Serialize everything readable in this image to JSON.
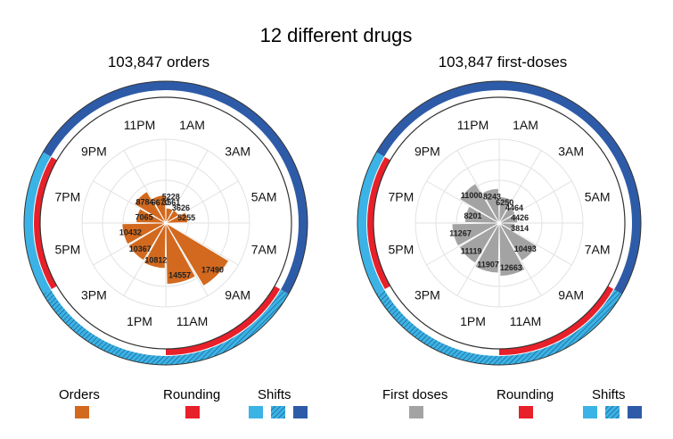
{
  "title": "12 different drugs",
  "colors": {
    "orders": "#d2691e",
    "first_doses": "#a3a3a3",
    "rounding": "#e8202a",
    "shift_light": "#3bb3e6",
    "shift_hatched": "#3bb3e6",
    "shift_dark": "#2e5ba8"
  },
  "hour_labels": [
    "1AM",
    "3AM",
    "5AM",
    "7AM",
    "9AM",
    "11AM",
    "1PM",
    "3PM",
    "5PM",
    "7PM",
    "9PM",
    "11PM"
  ],
  "legend": {
    "orders": "Orders",
    "first_doses": "First doses",
    "rounding": "Rounding",
    "shifts": "Shifts"
  },
  "chart_data": [
    {
      "type": "polar-bar",
      "subtitle": "103,847 orders",
      "color": "#d2691e",
      "categories": [
        "1AM",
        "3AM",
        "5AM",
        "7AM",
        "9AM",
        "11AM",
        "1PM",
        "3PM",
        "5PM",
        "7PM",
        "9PM",
        "11PM"
      ],
      "values": [
        3561,
        3626,
        5255,
        null,
        17490,
        14557,
        10812,
        10367,
        10432,
        7065,
        8784,
        6670
      ],
      "extra_labels": [
        {
          "hour": "1AM",
          "value": 5228
        }
      ],
      "rmax": 20000,
      "rounding_hours": [
        "9AM",
        "11AM",
        "5PM",
        "7PM"
      ]
    },
    {
      "type": "polar-bar",
      "subtitle": "103,847 first-doses",
      "color": "#a3a3a3",
      "categories": [
        "1AM",
        "3AM",
        "5AM",
        "7AM",
        "9AM",
        "11AM",
        "1PM",
        "3PM",
        "5PM",
        "7PM",
        "9PM",
        "11PM"
      ],
      "values": [
        6250,
        4464,
        4426,
        3814,
        10493,
        12663,
        11907,
        11119,
        11267,
        8201,
        11000,
        8243
      ],
      "rmax": 20000,
      "rounding_hours": [
        "9AM",
        "11AM",
        "5PM",
        "7PM"
      ]
    }
  ]
}
